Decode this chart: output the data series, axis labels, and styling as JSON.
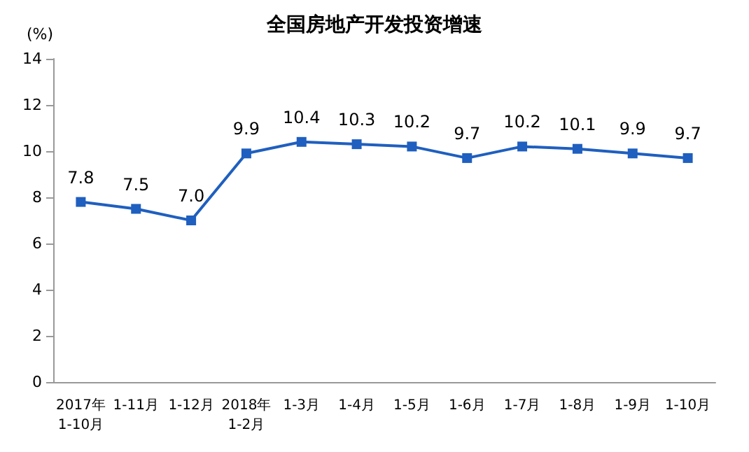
{
  "chart_data": {
    "type": "line",
    "title": "全国房地产开发投资增速",
    "ylabel": "(%)",
    "categories": [
      "2017年\n1-10月",
      "1-11月",
      "1-12月",
      "2018年\n1-2月",
      "1-3月",
      "1-4月",
      "1-5月",
      "1-6月",
      "1-7月",
      "1-8月",
      "1-9月",
      "1-10月"
    ],
    "series": [
      {
        "color": "#1f5fbf",
        "values": [
          7.8,
          7.5,
          7.0,
          9.9,
          10.4,
          10.3,
          10.2,
          9.7,
          10.2,
          10.1,
          9.9,
          9.7
        ]
      }
    ],
    "ylim": [
      0,
      14
    ],
    "yticks": [
      0,
      2,
      4,
      6,
      8,
      10,
      12,
      14
    ],
    "value_labels": [
      "7.8",
      "7.5",
      "7.0",
      "9.9",
      "10.4",
      "10.3",
      "10.2",
      "9.7",
      "10.2",
      "10.1",
      "9.9",
      "9.7"
    ],
    "grid": false,
    "marker": "square",
    "line_style": "solid"
  }
}
